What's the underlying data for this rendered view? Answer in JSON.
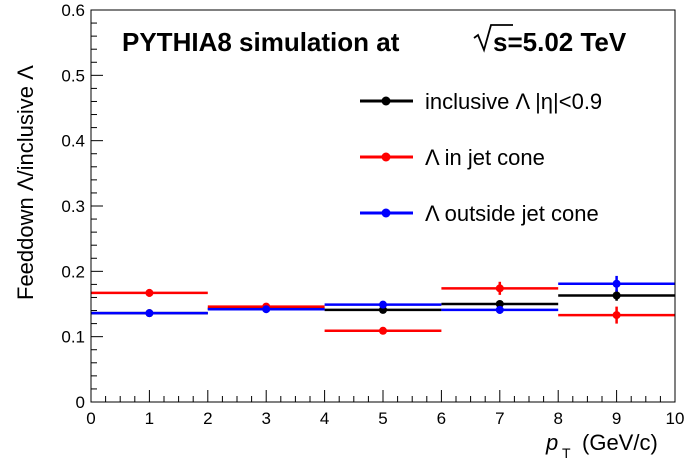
{
  "chart_data": {
    "type": "scatter",
    "title": "PYTHIA8 simulation at √s=5.02 TeV",
    "title_prefix": "PYTHIA8 simulation at",
    "title_sqrt_arg": "s=5.02 TeV",
    "xlabel": "p",
    "xlabel_sub": "T",
    "xlabel_unit": "(GeV/c)",
    "ylabel": "Feeddown Λ/inclusive Λ",
    "xlim": [
      0,
      10
    ],
    "ylim": [
      0,
      0.6
    ],
    "x_ticks": [
      "0",
      "1",
      "2",
      "3",
      "4",
      "5",
      "6",
      "7",
      "8",
      "9",
      "10"
    ],
    "y_ticks": [
      "0",
      "0.1",
      "0.2",
      "0.3",
      "0.4",
      "0.5",
      "0.6"
    ],
    "legend_position": "top-right",
    "series": [
      {
        "name": "inclusive Λ |η|<0.9",
        "color": "#000000",
        "points": [
          {
            "x": 1,
            "xlo": 0,
            "xhi": 2,
            "y": 0.136,
            "yerr": 0.003
          },
          {
            "x": 3,
            "xlo": 2,
            "xhi": 4,
            "y": 0.143,
            "yerr": 0.003
          },
          {
            "x": 5,
            "xlo": 4,
            "xhi": 6,
            "y": 0.141,
            "yerr": 0.004
          },
          {
            "x": 7,
            "xlo": 6,
            "xhi": 8,
            "y": 0.15,
            "yerr": 0.005
          },
          {
            "x": 9,
            "xlo": 8,
            "xhi": 10,
            "y": 0.163,
            "yerr": 0.008
          }
        ]
      },
      {
        "name": "Λ in jet cone",
        "color": "#ff0000",
        "points": [
          {
            "x": 1,
            "xlo": 0,
            "xhi": 2,
            "y": 0.167,
            "yerr": 0.006
          },
          {
            "x": 3,
            "xlo": 2,
            "xhi": 4,
            "y": 0.146,
            "yerr": 0.004
          },
          {
            "x": 5,
            "xlo": 4,
            "xhi": 6,
            "y": 0.109,
            "yerr": 0.004
          },
          {
            "x": 7,
            "xlo": 6,
            "xhi": 8,
            "y": 0.174,
            "yerr": 0.01
          },
          {
            "x": 9,
            "xlo": 8,
            "xhi": 10,
            "y": 0.133,
            "yerr": 0.013
          }
        ]
      },
      {
        "name": "Λ outside jet cone",
        "color": "#0000ff",
        "points": [
          {
            "x": 1,
            "xlo": 0,
            "xhi": 2,
            "y": 0.136,
            "yerr": 0.003
          },
          {
            "x": 3,
            "xlo": 2,
            "xhi": 4,
            "y": 0.142,
            "yerr": 0.003
          },
          {
            "x": 5,
            "xlo": 4,
            "xhi": 6,
            "y": 0.149,
            "yerr": 0.004
          },
          {
            "x": 7,
            "xlo": 6,
            "xhi": 8,
            "y": 0.141,
            "yerr": 0.006
          },
          {
            "x": 9,
            "xlo": 8,
            "xhi": 10,
            "y": 0.181,
            "yerr": 0.012
          }
        ]
      }
    ]
  }
}
